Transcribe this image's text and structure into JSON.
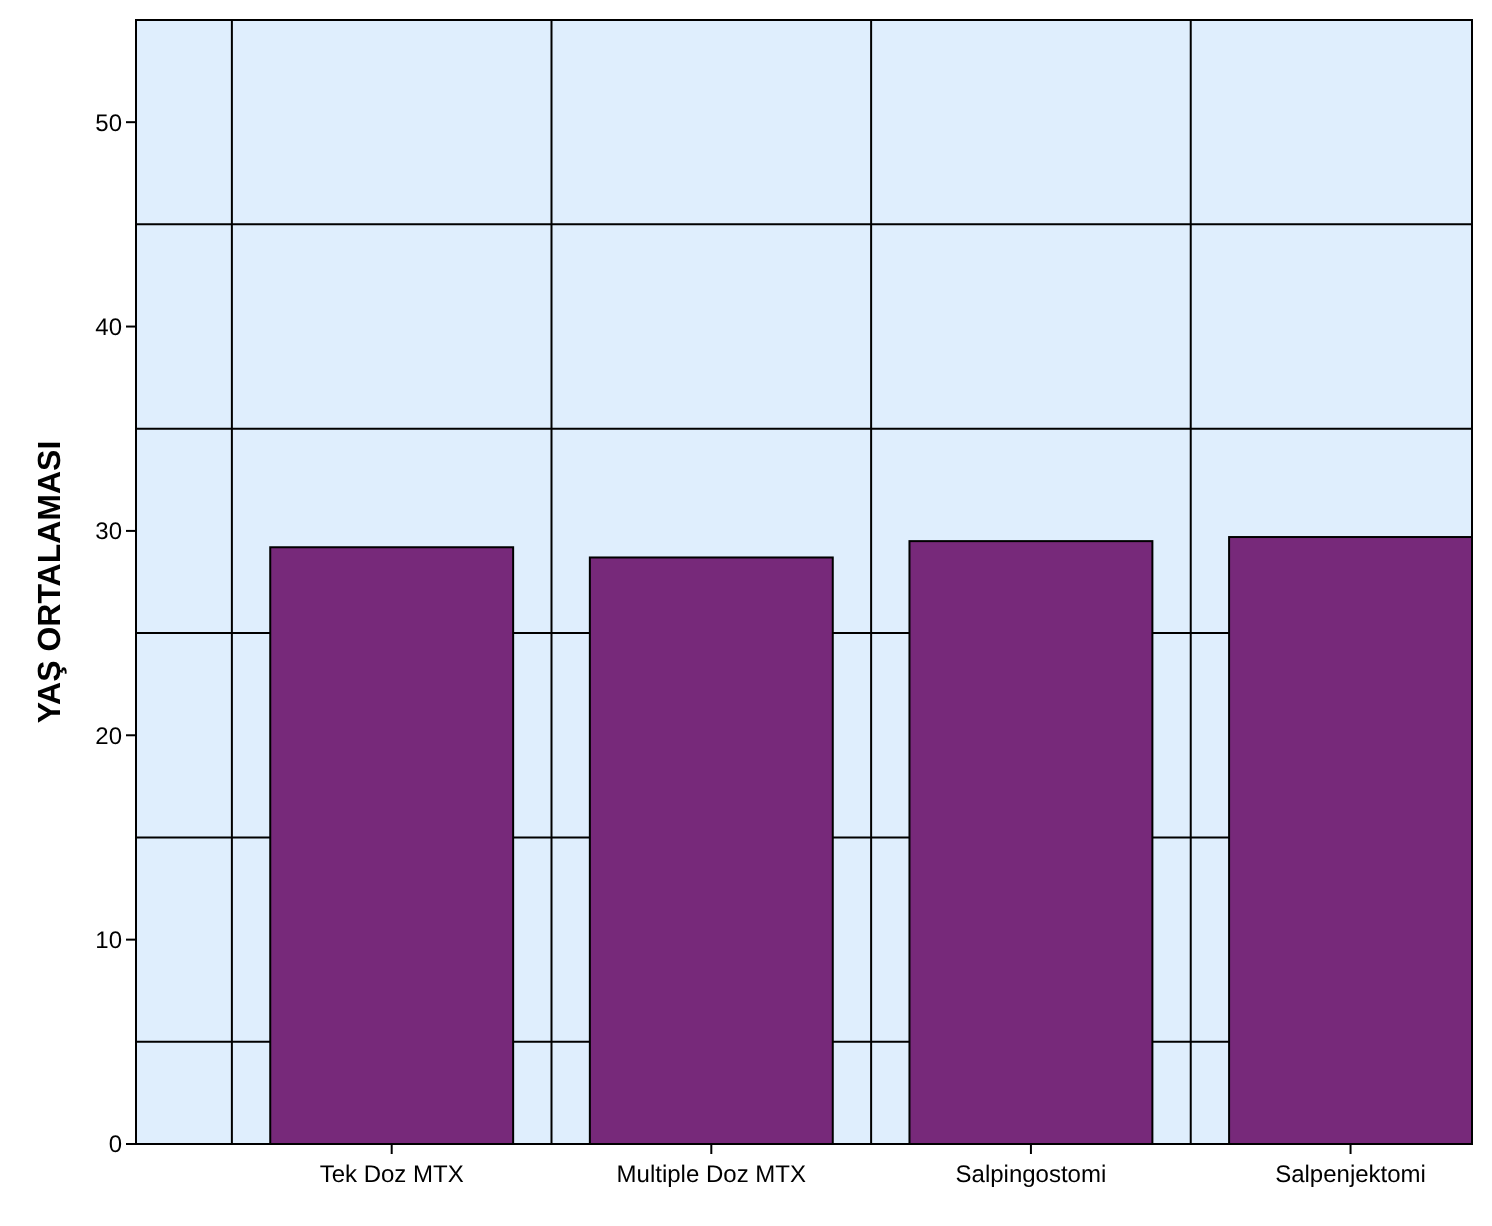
{
  "chart_data": {
    "type": "bar",
    "ylabel": "YAŞ ORTALAMASI",
    "categories": [
      "Tek Doz MTX",
      "Multiple Doz MTX",
      "Salpingostomi",
      "Salpenjektomi"
    ],
    "values": [
      29.2,
      28.7,
      29.5,
      29.7
    ],
    "color": "#77297a",
    "ylim": [
      0,
      55
    ],
    "yticks": [
      0,
      10,
      20,
      30,
      40,
      50
    ],
    "grid": true
  }
}
